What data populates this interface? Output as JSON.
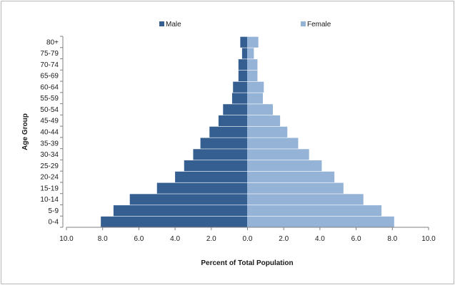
{
  "chart_data": {
    "type": "bar",
    "orientation": "horizontal",
    "subtype": "population-pyramid",
    "title": "",
    "xlabel": "Percent of Total Population",
    "ylabel": "Age Group",
    "categories": [
      "0-4",
      "5-9",
      "10-14",
      "15-19",
      "20-24",
      "25-29",
      "30-34",
      "35-39",
      "40-44",
      "45-49",
      "50-54",
      "55-59",
      "60-64",
      "65-69",
      "70-74",
      "75-79",
      "80+"
    ],
    "series": [
      {
        "name": "Male",
        "color": "#355e91",
        "values": [
          8.1,
          7.4,
          6.5,
          5.0,
          4.0,
          3.5,
          3.0,
          2.6,
          2.1,
          1.6,
          1.35,
          0.85,
          0.8,
          0.5,
          0.5,
          0.3,
          0.4
        ]
      },
      {
        "name": "Female",
        "color": "#95b3d7",
        "values": [
          8.1,
          7.4,
          6.4,
          5.3,
          4.8,
          4.1,
          3.4,
          2.8,
          2.2,
          1.8,
          1.4,
          0.85,
          0.9,
          0.55,
          0.55,
          0.35,
          0.6
        ]
      }
    ],
    "xlim": [
      -10,
      10
    ],
    "xticks": [
      -10,
      -8,
      -6,
      -4,
      -2,
      0,
      2,
      4,
      6,
      8,
      10
    ],
    "xtick_labels": [
      "10.0",
      "8.0",
      "6.0",
      "4.0",
      "2.0",
      "0.0",
      "2.0",
      "4.0",
      "6.0",
      "8.0",
      "10.0"
    ],
    "grid": false,
    "legend_position": "top"
  }
}
